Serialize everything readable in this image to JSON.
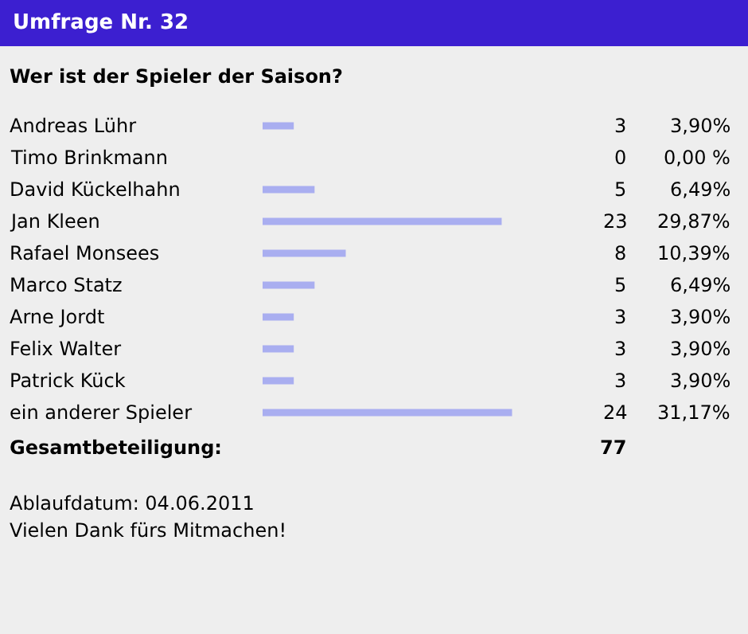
{
  "chart_data": {
    "type": "bar",
    "orientation": "horizontal",
    "title": "Umfrage Nr. 32",
    "subtitle": "Wer ist der Spieler der Saison?",
    "categories": [
      "Andreas Lühr",
      "Timo Brinkmann",
      "David Kückelhahn",
      "Jan Kleen",
      "Rafael Monsees",
      "Marco Statz",
      "Arne Jordt",
      "Felix Walter",
      "Patrick Kück",
      "ein anderer Spieler"
    ],
    "values": [
      3,
      0,
      5,
      23,
      8,
      5,
      3,
      3,
      3,
      24
    ],
    "color": "#a9aef0",
    "tick_labels": false,
    "data_labels": true,
    "grid": false,
    "legend": false,
    "annotations": [
      "3,90%",
      "0,00 %",
      "6,49%",
      "29,87%",
      "10,39%",
      "6,49%",
      "3,90%",
      "3,90%",
      "3,90%",
      "31,17%",
      "Gesamtbeteiligung:",
      "77",
      "Ablaufdatum: 04.06.2011",
      "Vielen Dank fürs Mitmachen!"
    ]
  }
}
